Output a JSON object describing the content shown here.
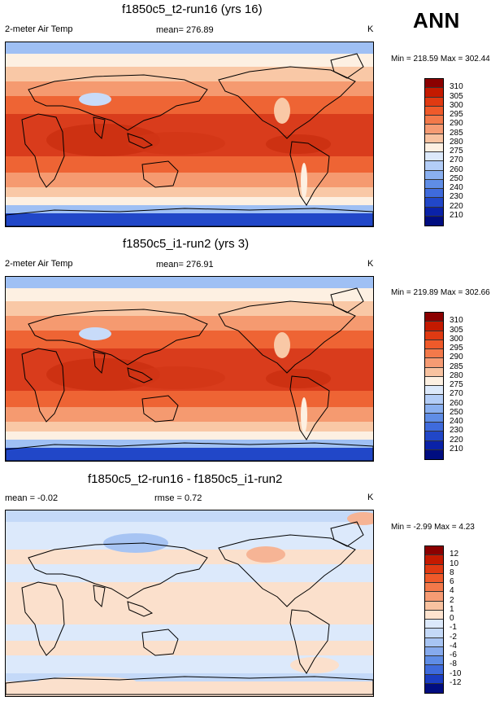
{
  "season": "ANN",
  "panels": [
    {
      "title": "f1850c5_t2-run16 (yrs 16)",
      "left_label": "2-meter Air Temp",
      "center_label": "mean= 276.89",
      "units": "K",
      "min_max": "Min = 218.59 Max = 302.44",
      "colorbar": {
        "labels": [
          "310",
          "305",
          "300",
          "295",
          "290",
          "285",
          "280",
          "275",
          "270",
          "260",
          "250",
          "240",
          "230",
          "220",
          "210"
        ],
        "colors": [
          "#8b0000",
          "#c41a00",
          "#e03a12",
          "#ef5a2a",
          "#f3794a",
          "#f69b73",
          "#f8c2a0",
          "#fdf0e2",
          "#dce9fb",
          "#b3cdf7",
          "#8ab0f0",
          "#5f8de6",
          "#3f6bdc",
          "#2147c8",
          "#0a22a8",
          "#000d80"
        ]
      },
      "map_colors": {
        "tropics": "#d93c1c",
        "subtropics": "#ee6434",
        "midlat": "#f59a70",
        "cool": "#f9c8a6",
        "neutral": "#fdf0e2",
        "cold": "#9fc0f4",
        "vcold": "#5f8de6",
        "polar": "#2147c8"
      }
    },
    {
      "title": "f1850c5_i1-run2 (yrs 3)",
      "left_label": "2-meter Air Temp",
      "center_label": "mean= 276.91",
      "units": "K",
      "min_max": "Min = 219.89 Max = 302.66",
      "colorbar": {
        "labels": [
          "310",
          "305",
          "300",
          "295",
          "290",
          "285",
          "280",
          "275",
          "270",
          "260",
          "250",
          "240",
          "230",
          "220",
          "210"
        ],
        "colors": [
          "#8b0000",
          "#c41a00",
          "#e03a12",
          "#ef5a2a",
          "#f3794a",
          "#f69b73",
          "#f8c2a0",
          "#fdf0e2",
          "#dce9fb",
          "#b3cdf7",
          "#8ab0f0",
          "#5f8de6",
          "#3f6bdc",
          "#2147c8",
          "#0a22a8",
          "#000d80"
        ]
      },
      "map_colors": {
        "tropics": "#d93c1c",
        "subtropics": "#ee6434",
        "midlat": "#f59a70",
        "cool": "#f9c8a6",
        "neutral": "#fdf0e2",
        "cold": "#9fc0f4",
        "vcold": "#5f8de6",
        "polar": "#2147c8"
      }
    },
    {
      "title": "f1850c5_t2-run16 - f1850c5_i1-run2",
      "left_label": "mean =  -0.02",
      "center_label": "rmse =   0.72",
      "units": "K",
      "min_max": "Min =  -2.99 Max =   4.23",
      "colorbar": {
        "labels": [
          "12",
          "10",
          "8",
          "6",
          "4",
          "2",
          "1",
          "0",
          "-1",
          "-2",
          "-4",
          "-6",
          "-8",
          "-10",
          "-12"
        ],
        "colors": [
          "#8b0000",
          "#c41a00",
          "#e03a12",
          "#ef5a2a",
          "#f3794a",
          "#f69b73",
          "#f8c2a0",
          "#fde3cf",
          "#dce9fb",
          "#c4d9f8",
          "#a7c4f3",
          "#86aaed",
          "#5f8de6",
          "#3f6bdc",
          "#1b3dc2",
          "#000d80"
        ]
      },
      "map_colors": {
        "tropics": "#fbe0cc",
        "subtropics": "#dce9fb",
        "midlat": "#fbe0cc",
        "cool": "#dce9fb",
        "neutral": "#dce9fb",
        "cold": "#c4d9f8",
        "vcold": "#a7c4f3",
        "polar": "#fbe0cc"
      }
    }
  ]
}
